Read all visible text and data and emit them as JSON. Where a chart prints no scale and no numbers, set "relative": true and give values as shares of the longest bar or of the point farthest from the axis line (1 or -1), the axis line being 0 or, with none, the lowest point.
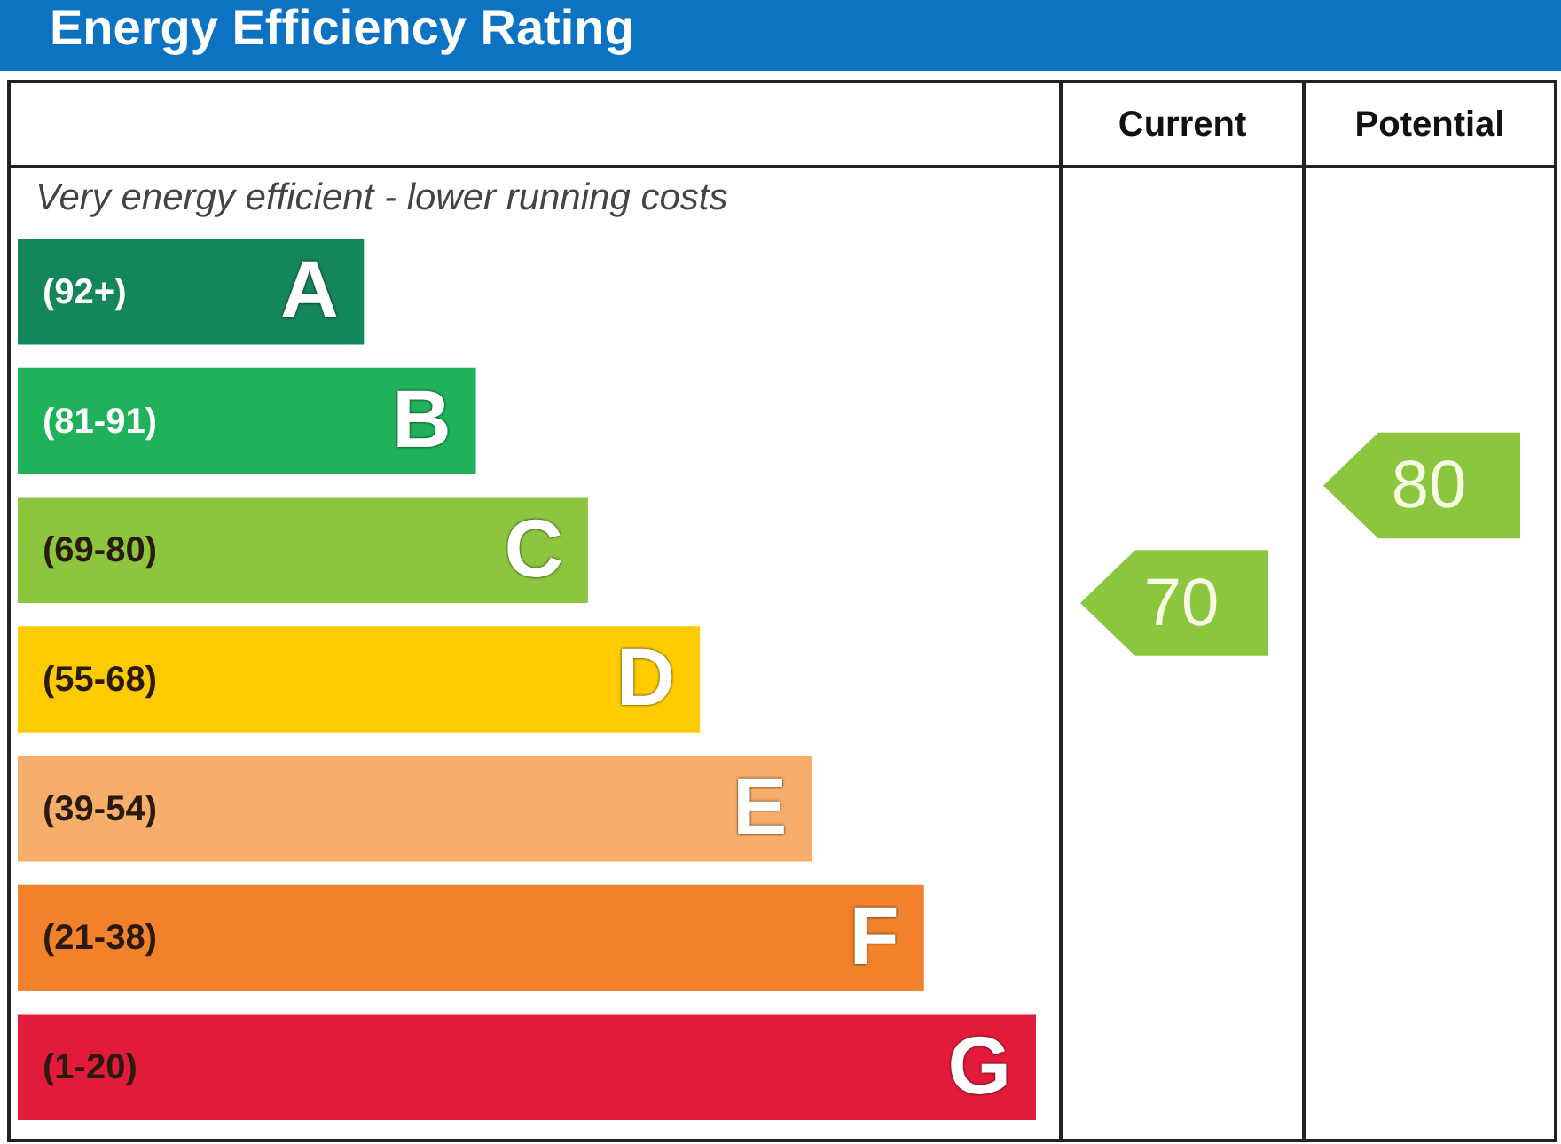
{
  "chart_data": {
    "type": "bar",
    "orientation": "horizontal",
    "relative": true,
    "title": "Energy Efficiency Rating",
    "categories": [
      "A",
      "B",
      "C",
      "D",
      "E",
      "F",
      "G"
    ],
    "values": [
      0.34,
      0.45,
      0.56,
      0.67,
      0.78,
      0.89,
      1
    ],
    "colors": [
      "#14865b",
      "#1fb25a",
      "#8cc63f",
      "#fecb00",
      "#f7ae6b",
      "#f1822b",
      "#e31b3b"
    ],
    "annotations": [
      "Very energy efficient - lower running costs",
      "Current",
      "Potential",
      "(92+)",
      "(81-91)",
      "(69-80)",
      "(55-68)",
      "(39-54)",
      "(21-38)",
      "(1-20)",
      "70",
      "80"
    ]
  }
}
